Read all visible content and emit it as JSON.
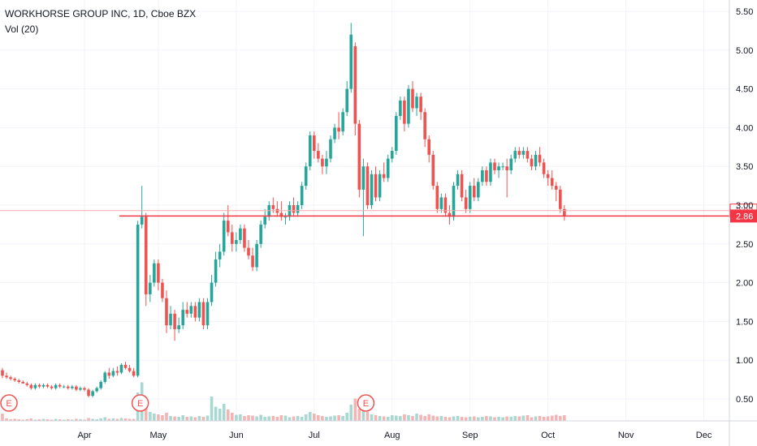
{
  "legend": {
    "title": "WORKHORSE GROUP INC, 1D, Cboe BZX",
    "volume": "Vol (20)"
  },
  "colors": {
    "up": "#26a69a",
    "down": "#ef5350",
    "vol_up": "#a8d8d1",
    "vol_down": "#f4b4b4",
    "price_line": "#f23645",
    "grid": "#f0f3fa",
    "axis_text": "#131722",
    "earnings": "#ef5350"
  },
  "chart_data": {
    "type": "candlestick",
    "title": "WORKHORSE GROUP INC, 1D, Cboe BZX",
    "xlabel": "",
    "ylabel": "",
    "ylim": [
      0.2,
      5.6
    ],
    "y_ticks": [
      "5.50",
      "5.00",
      "4.50",
      "4.00",
      "3.50",
      "3.00",
      "2.50",
      "2.00",
      "1.50",
      "1.00",
      "0.50"
    ],
    "x_ticks": [
      "Apr",
      "May",
      "Jun",
      "Jul",
      "Aug",
      "Sep",
      "Oct",
      "Nov",
      "Dec"
    ],
    "x_tick_days": [
      20,
      38,
      57,
      76,
      95,
      114,
      133,
      152,
      171
    ],
    "price_labels": [
      {
        "value": 2.93,
        "text": "2.93",
        "style": "outline"
      },
      {
        "value": 2.86,
        "text": "2.86",
        "style": "filled"
      }
    ],
    "earnings_markers": [
      {
        "day": 1,
        "text": "E"
      },
      {
        "day": 33,
        "text": "E"
      },
      {
        "day": 88,
        "text": "E"
      }
    ],
    "series": [
      {
        "name": "Price",
        "ohlc": [
          [
            0.87,
            0.9,
            0.77,
            0.8
          ],
          [
            0.8,
            0.84,
            0.76,
            0.78
          ],
          [
            0.78,
            0.8,
            0.74,
            0.76
          ],
          [
            0.76,
            0.78,
            0.72,
            0.74
          ],
          [
            0.74,
            0.76,
            0.7,
            0.72
          ],
          [
            0.72,
            0.74,
            0.7,
            0.7
          ],
          [
            0.7,
            0.72,
            0.66,
            0.68
          ],
          [
            0.68,
            0.7,
            0.62,
            0.64
          ],
          [
            0.64,
            0.7,
            0.62,
            0.68
          ],
          [
            0.68,
            0.7,
            0.64,
            0.66
          ],
          [
            0.66,
            0.7,
            0.64,
            0.68
          ],
          [
            0.68,
            0.7,
            0.64,
            0.66
          ],
          [
            0.66,
            0.68,
            0.62,
            0.64
          ],
          [
            0.64,
            0.7,
            0.62,
            0.68
          ],
          [
            0.68,
            0.7,
            0.64,
            0.66
          ],
          [
            0.66,
            0.68,
            0.64,
            0.66
          ],
          [
            0.66,
            0.68,
            0.62,
            0.64
          ],
          [
            0.64,
            0.68,
            0.62,
            0.66
          ],
          [
            0.66,
            0.68,
            0.6,
            0.62
          ],
          [
            0.62,
            0.66,
            0.6,
            0.64
          ],
          [
            0.64,
            0.66,
            0.6,
            0.62
          ],
          [
            0.62,
            0.64,
            0.52,
            0.54
          ],
          [
            0.54,
            0.62,
            0.52,
            0.6
          ],
          [
            0.6,
            0.66,
            0.58,
            0.64
          ],
          [
            0.64,
            0.74,
            0.62,
            0.72
          ],
          [
            0.72,
            0.86,
            0.7,
            0.84
          ],
          [
            0.84,
            0.9,
            0.76,
            0.8
          ],
          [
            0.8,
            0.9,
            0.78,
            0.86
          ],
          [
            0.86,
            0.92,
            0.8,
            0.84
          ],
          [
            0.84,
            0.96,
            0.82,
            0.94
          ],
          [
            0.94,
            0.98,
            0.88,
            0.9
          ],
          [
            0.9,
            0.94,
            0.84,
            0.86
          ],
          [
            0.86,
            0.9,
            0.78,
            0.8
          ],
          [
            0.8,
            2.8,
            0.78,
            2.75
          ],
          [
            2.75,
            3.25,
            2.7,
            2.85
          ],
          [
            2.85,
            2.9,
            1.7,
            1.85
          ],
          [
            1.85,
            2.1,
            1.75,
            2.0
          ],
          [
            2.0,
            2.3,
            1.95,
            2.25
          ],
          [
            2.25,
            2.3,
            1.9,
            2.0
          ],
          [
            2.0,
            2.05,
            1.75,
            1.8
          ],
          [
            1.8,
            1.9,
            1.35,
            1.45
          ],
          [
            1.45,
            1.7,
            1.4,
            1.6
          ],
          [
            1.6,
            1.65,
            1.25,
            1.4
          ],
          [
            1.4,
            1.55,
            1.35,
            1.45
          ],
          [
            1.45,
            1.75,
            1.4,
            1.65
          ],
          [
            1.65,
            1.75,
            1.55,
            1.6
          ],
          [
            1.6,
            1.75,
            1.55,
            1.7
          ],
          [
            1.7,
            1.75,
            1.5,
            1.55
          ],
          [
            1.55,
            1.8,
            1.5,
            1.75
          ],
          [
            1.75,
            1.8,
            1.4,
            1.45
          ],
          [
            1.45,
            1.8,
            1.4,
            1.75
          ],
          [
            1.75,
            2.1,
            1.7,
            2.0
          ],
          [
            2.0,
            2.4,
            1.95,
            2.3
          ],
          [
            2.3,
            2.5,
            2.2,
            2.4
          ],
          [
            2.4,
            2.9,
            2.35,
            2.8
          ],
          [
            2.8,
            3.0,
            2.6,
            2.65
          ],
          [
            2.65,
            2.75,
            2.4,
            2.5
          ],
          [
            2.5,
            2.65,
            2.4,
            2.55
          ],
          [
            2.55,
            2.75,
            2.5,
            2.7
          ],
          [
            2.7,
            2.75,
            2.4,
            2.45
          ],
          [
            2.45,
            2.55,
            2.3,
            2.35
          ],
          [
            2.35,
            2.45,
            2.15,
            2.2
          ],
          [
            2.2,
            2.55,
            2.15,
            2.5
          ],
          [
            2.5,
            2.8,
            2.45,
            2.75
          ],
          [
            2.75,
            2.95,
            2.7,
            2.85
          ],
          [
            2.85,
            3.05,
            2.8,
            3.0
          ],
          [
            3.0,
            3.1,
            2.9,
            2.95
          ],
          [
            2.95,
            3.05,
            2.85,
            2.9
          ],
          [
            2.9,
            3.05,
            2.8,
            2.85
          ],
          [
            2.85,
            2.9,
            2.75,
            2.85
          ],
          [
            2.85,
            3.05,
            2.8,
            3.0
          ],
          [
            3.0,
            3.1,
            2.85,
            2.9
          ],
          [
            2.9,
            3.05,
            2.85,
            3.0
          ],
          [
            3.0,
            3.3,
            2.95,
            3.25
          ],
          [
            3.25,
            3.55,
            3.2,
            3.5
          ],
          [
            3.5,
            3.95,
            3.45,
            3.9
          ],
          [
            3.9,
            3.95,
            3.6,
            3.7
          ],
          [
            3.7,
            3.8,
            3.55,
            3.6
          ],
          [
            3.6,
            3.65,
            3.4,
            3.5
          ],
          [
            3.5,
            3.7,
            3.4,
            3.6
          ],
          [
            3.6,
            3.9,
            3.55,
            3.85
          ],
          [
            3.85,
            4.05,
            3.8,
            4.0
          ],
          [
            4.0,
            4.2,
            3.85,
            3.95
          ],
          [
            3.95,
            4.25,
            3.9,
            4.2
          ],
          [
            4.2,
            4.6,
            4.15,
            4.5
          ],
          [
            4.5,
            5.35,
            4.45,
            5.2
          ],
          [
            5.05,
            5.1,
            3.9,
            4.05
          ],
          [
            4.05,
            4.1,
            3.1,
            3.2
          ],
          [
            3.2,
            3.6,
            2.6,
            3.5
          ],
          [
            3.5,
            3.55,
            2.95,
            3.0
          ],
          [
            3.0,
            3.45,
            2.95,
            3.4
          ],
          [
            3.4,
            3.5,
            3.05,
            3.1
          ],
          [
            3.1,
            3.45,
            3.05,
            3.4
          ],
          [
            3.4,
            3.55,
            3.3,
            3.35
          ],
          [
            3.35,
            3.65,
            3.3,
            3.6
          ],
          [
            3.6,
            3.75,
            3.55,
            3.7
          ],
          [
            3.7,
            4.2,
            3.65,
            4.15
          ],
          [
            4.15,
            4.4,
            4.1,
            4.35
          ],
          [
            4.35,
            4.4,
            3.95,
            4.05
          ],
          [
            4.05,
            4.55,
            4.0,
            4.5
          ],
          [
            4.5,
            4.6,
            4.2,
            4.25
          ],
          [
            4.25,
            4.45,
            4.15,
            4.4
          ],
          [
            4.4,
            4.45,
            4.1,
            4.2
          ],
          [
            4.2,
            4.25,
            3.75,
            3.85
          ],
          [
            3.85,
            3.9,
            3.55,
            3.65
          ],
          [
            3.65,
            3.7,
            3.2,
            3.25
          ],
          [
            3.25,
            3.3,
            2.9,
            2.95
          ],
          [
            2.95,
            3.15,
            2.9,
            3.1
          ],
          [
            3.1,
            3.15,
            2.85,
            2.9
          ],
          [
            2.9,
            3.0,
            2.75,
            2.85
          ],
          [
            2.85,
            3.3,
            2.8,
            3.25
          ],
          [
            3.25,
            3.45,
            3.2,
            3.4
          ],
          [
            3.4,
            3.45,
            3.05,
            3.1
          ],
          [
            3.1,
            3.2,
            2.9,
            2.95
          ],
          [
            2.95,
            3.3,
            2.9,
            3.25
          ],
          [
            3.25,
            3.35,
            3.05,
            3.1
          ],
          [
            3.1,
            3.35,
            3.05,
            3.3
          ],
          [
            3.3,
            3.5,
            3.25,
            3.45
          ],
          [
            3.45,
            3.5,
            3.25,
            3.3
          ],
          [
            3.3,
            3.6,
            3.25,
            3.55
          ],
          [
            3.55,
            3.6,
            3.4,
            3.45
          ],
          [
            3.45,
            3.55,
            3.35,
            3.5
          ],
          [
            3.5,
            3.55,
            3.45,
            3.5
          ],
          [
            3.5,
            3.6,
            3.1,
            3.45
          ],
          [
            3.45,
            3.65,
            3.4,
            3.6
          ],
          [
            3.6,
            3.75,
            3.55,
            3.7
          ],
          [
            3.7,
            3.75,
            3.6,
            3.65
          ],
          [
            3.65,
            3.75,
            3.6,
            3.7
          ],
          [
            3.7,
            3.75,
            3.55,
            3.6
          ],
          [
            3.6,
            3.65,
            3.45,
            3.5
          ],
          [
            3.5,
            3.7,
            3.45,
            3.65
          ],
          [
            3.65,
            3.75,
            3.5,
            3.55
          ],
          [
            3.55,
            3.6,
            3.35,
            3.4
          ],
          [
            3.4,
            3.45,
            3.25,
            3.35
          ],
          [
            3.35,
            3.45,
            3.2,
            3.25
          ],
          [
            3.25,
            3.3,
            3.05,
            3.2
          ],
          [
            3.2,
            3.25,
            2.9,
            2.95
          ],
          [
            2.95,
            3.0,
            2.8,
            2.86
          ]
        ]
      },
      {
        "name": "Vol (20)",
        "volume": [
          18,
          6,
          4,
          5,
          4,
          3,
          4,
          6,
          3,
          4,
          5,
          4,
          3,
          5,
          4,
          3,
          4,
          3,
          5,
          4,
          3,
          7,
          5,
          4,
          6,
          9,
          5,
          6,
          5,
          7,
          6,
          5,
          5,
          70,
          95,
          40,
          22,
          18,
          16,
          14,
          20,
          12,
          11,
          10,
          14,
          10,
          11,
          9,
          12,
          10,
          13,
          60,
          35,
          30,
          42,
          28,
          20,
          15,
          16,
          12,
          14,
          13,
          11,
          15,
          10,
          11,
          12,
          10,
          14,
          13,
          9,
          11,
          12,
          10,
          16,
          22,
          18,
          14,
          12,
          10,
          11,
          13,
          14,
          12,
          20,
          40,
          55,
          30,
          38,
          22,
          16,
          14,
          12,
          11,
          10,
          14,
          13,
          12,
          16,
          14,
          12,
          18,
          15,
          12,
          16,
          13,
          11,
          12,
          10,
          9,
          11,
          12,
          10,
          9,
          10,
          11,
          9,
          10,
          12,
          11,
          9,
          10,
          9,
          11,
          10,
          12,
          11,
          13,
          14,
          9,
          11,
          12,
          10,
          11,
          13,
          15,
          12,
          14
        ]
      }
    ]
  }
}
